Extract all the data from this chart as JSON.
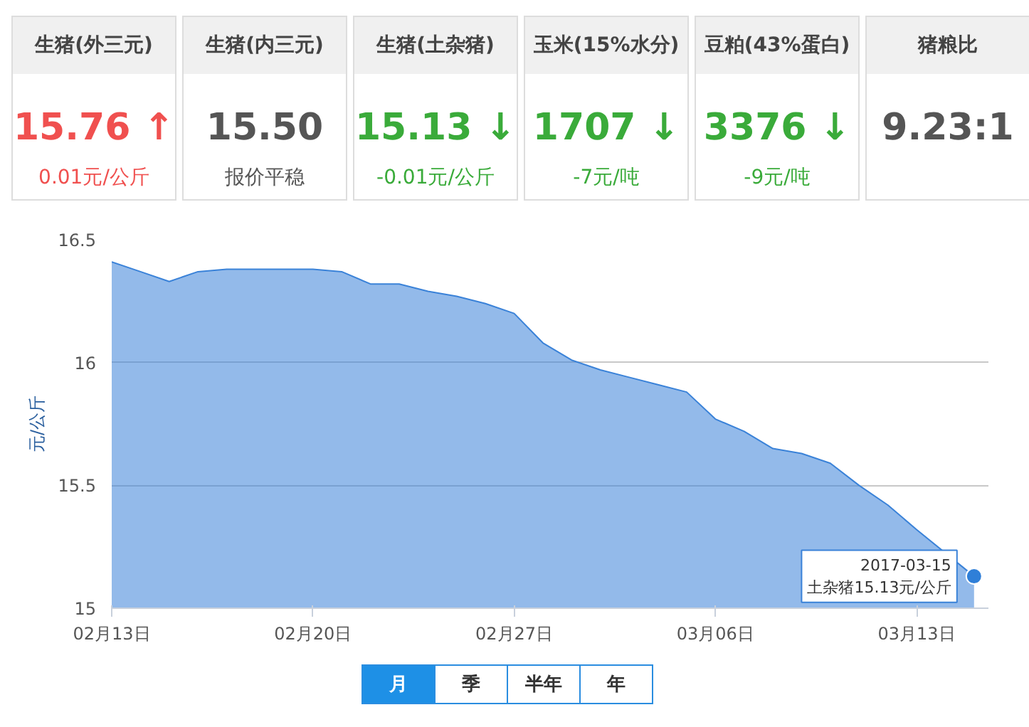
{
  "chart_data": [
    {
      "type": "other",
      "title": "生猪(外三元)",
      "annotations": [
        "15.76 ↑",
        "0.01元/公斤"
      ],
      "colors": [
        "#f0504f",
        "#f0504f"
      ]
    },
    {
      "type": "other",
      "title": "生猪(内三元)",
      "annotations": [
        "15.50",
        "报价平稳"
      ],
      "colors": [
        "#555555",
        "#555555"
      ]
    },
    {
      "type": "other",
      "title": "生猪(土杂猪)",
      "annotations": [
        "15.13 ↓",
        "-0.01元/公斤"
      ],
      "colors": [
        "#3aab3a",
        "#3aab3a"
      ]
    },
    {
      "type": "other",
      "title": "玉米(15%水分)",
      "annotations": [
        "1707  ↓",
        "-7元/吨"
      ],
      "colors": [
        "#3aab3a",
        "#3aab3a"
      ]
    },
    {
      "type": "other",
      "title": "豆粕(43%蛋白)",
      "annotations": [
        "3376  ↓",
        "-9元/吨"
      ],
      "colors": [
        "#3aab3a",
        "#3aab3a"
      ]
    },
    {
      "type": "other",
      "title": "猪粮比",
      "annotations": [
        "9.23:1"
      ],
      "colors": [
        "#555555"
      ]
    },
    {
      "type": "area",
      "ylabel": "元/公斤",
      "x": [
        "2017-02-13",
        "2017-02-14",
        "2017-02-15",
        "2017-02-16",
        "2017-02-17",
        "2017-02-18",
        "2017-02-19",
        "2017-02-20",
        "2017-02-21",
        "2017-02-22",
        "2017-02-23",
        "2017-02-24",
        "2017-02-25",
        "2017-02-26",
        "2017-02-27",
        "2017-02-28",
        "2017-03-01",
        "2017-03-02",
        "2017-03-03",
        "2017-03-04",
        "2017-03-05",
        "2017-03-06",
        "2017-03-07",
        "2017-03-08",
        "2017-03-09",
        "2017-03-10",
        "2017-03-11",
        "2017-03-12",
        "2017-03-13",
        "2017-03-14",
        "2017-03-15"
      ],
      "series": [
        {
          "color": "#3a82d8",
          "values": [
            16.41,
            16.37,
            16.33,
            16.37,
            16.38,
            16.38,
            16.38,
            16.38,
            16.37,
            16.32,
            16.32,
            16.29,
            16.27,
            16.24,
            16.2,
            16.08,
            16.01,
            15.97,
            15.94,
            15.91,
            15.88,
            15.77,
            15.72,
            15.65,
            15.63,
            15.59,
            15.5,
            15.42,
            15.32,
            null,
            15.13
          ]
        }
      ],
      "xlim": [
        "2017-02-13",
        "2017-03-15T12:00"
      ],
      "xticks": [
        {
          "value": "2017-02-13",
          "label": "02月13日"
        },
        {
          "value": "2017-02-20",
          "label": "02月20日"
        },
        {
          "value": "2017-02-27",
          "label": "02月27日"
        },
        {
          "value": "2017-03-06",
          "label": "03月06日"
        },
        {
          "value": "2017-03-13",
          "label": "03月13日"
        }
      ],
      "ylim": [
        15,
        16.5
      ],
      "yticks": [
        15,
        15.5,
        16,
        16.5
      ],
      "grid": "y",
      "marker": "none",
      "annotations": [
        {
          "text": "2017-03-15\n土杂猪15.13元/公斤",
          "x": "2017-03-15",
          "y": 15.13
        }
      ]
    },
    {
      "type": "other",
      "categories": [
        "月",
        "季",
        "半年",
        "年"
      ],
      "colors": [
        "#1e90e6",
        "#ffffff",
        "#ffffff",
        "#ffffff"
      ]
    }
  ]
}
